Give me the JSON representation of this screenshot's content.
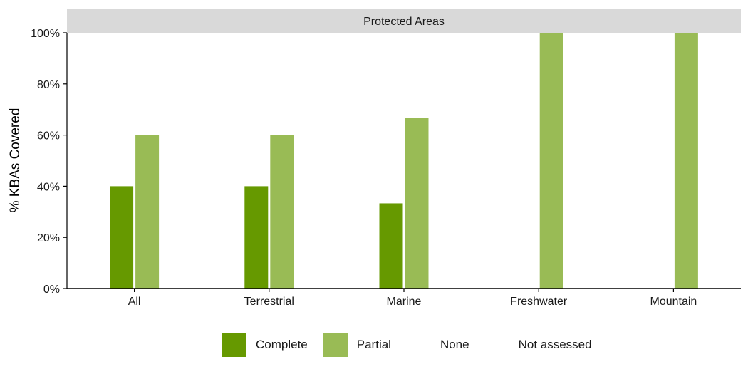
{
  "chart_data": {
    "type": "bar",
    "panel_title": "Protected Areas",
    "categories": [
      "All",
      "Terrestrial",
      "Marine",
      "Freshwater",
      "Mountain"
    ],
    "series": [
      {
        "name": "Complete",
        "color": "#669900",
        "values": [
          40,
          40,
          33.3,
          0,
          0
        ]
      },
      {
        "name": "Partial",
        "color": "#99bb55",
        "values": [
          60,
          60,
          66.7,
          100,
          100
        ]
      },
      {
        "name": "None",
        "color": "#ffffff",
        "values": [
          0,
          0,
          0,
          0,
          0
        ]
      },
      {
        "name": "Not assessed",
        "color": "#ffffff",
        "values": [
          0,
          0,
          0,
          0,
          0
        ]
      }
    ],
    "ylabel": "% KBAs Covered",
    "xlabel": "",
    "ylim": [
      0,
      100
    ],
    "yticks": [
      "0%",
      "20%",
      "40%",
      "60%",
      "80%",
      "100%"
    ],
    "grid": false,
    "legend_position": "bottom"
  }
}
